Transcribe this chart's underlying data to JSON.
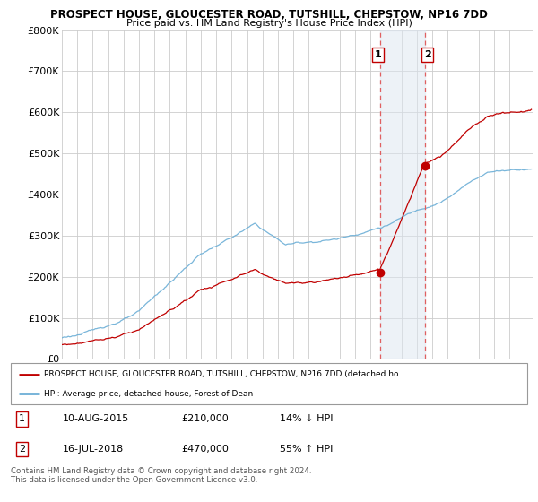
{
  "title": "PROSPECT HOUSE, GLOUCESTER ROAD, TUTSHILL, CHEPSTOW, NP16 7DD",
  "subtitle": "Price paid vs. HM Land Registry's House Price Index (HPI)",
  "ylim": [
    0,
    800000
  ],
  "yticks": [
    0,
    100000,
    200000,
    300000,
    400000,
    500000,
    600000,
    700000,
    800000
  ],
  "ytick_labels": [
    "£0",
    "£100K",
    "£200K",
    "£300K",
    "£400K",
    "£500K",
    "£600K",
    "£700K",
    "£800K"
  ],
  "hpi_color": "#6baed6",
  "price_color": "#c00000",
  "sale1_date": 2015.61,
  "sale1_price": 210000,
  "sale2_date": 2018.54,
  "sale2_price": 470000,
  "vline_color": "#e06060",
  "shade_color": "#dce6f1",
  "shade_alpha": 0.5,
  "legend_label1": "PROSPECT HOUSE, GLOUCESTER ROAD, TUTSHILL, CHEPSTOW, NP16 7DD (detached ho",
  "legend_label2": "HPI: Average price, detached house, Forest of Dean",
  "table_row1": [
    "1",
    "10-AUG-2015",
    "£210,000",
    "14% ↓ HPI"
  ],
  "table_row2": [
    "2",
    "16-JUL-2018",
    "£470,000",
    "55% ↑ HPI"
  ],
  "footer": "Contains HM Land Registry data © Crown copyright and database right 2024.\nThis data is licensed under the Open Government Licence v3.0.",
  "background_color": "#ffffff",
  "grid_color": "#cccccc"
}
